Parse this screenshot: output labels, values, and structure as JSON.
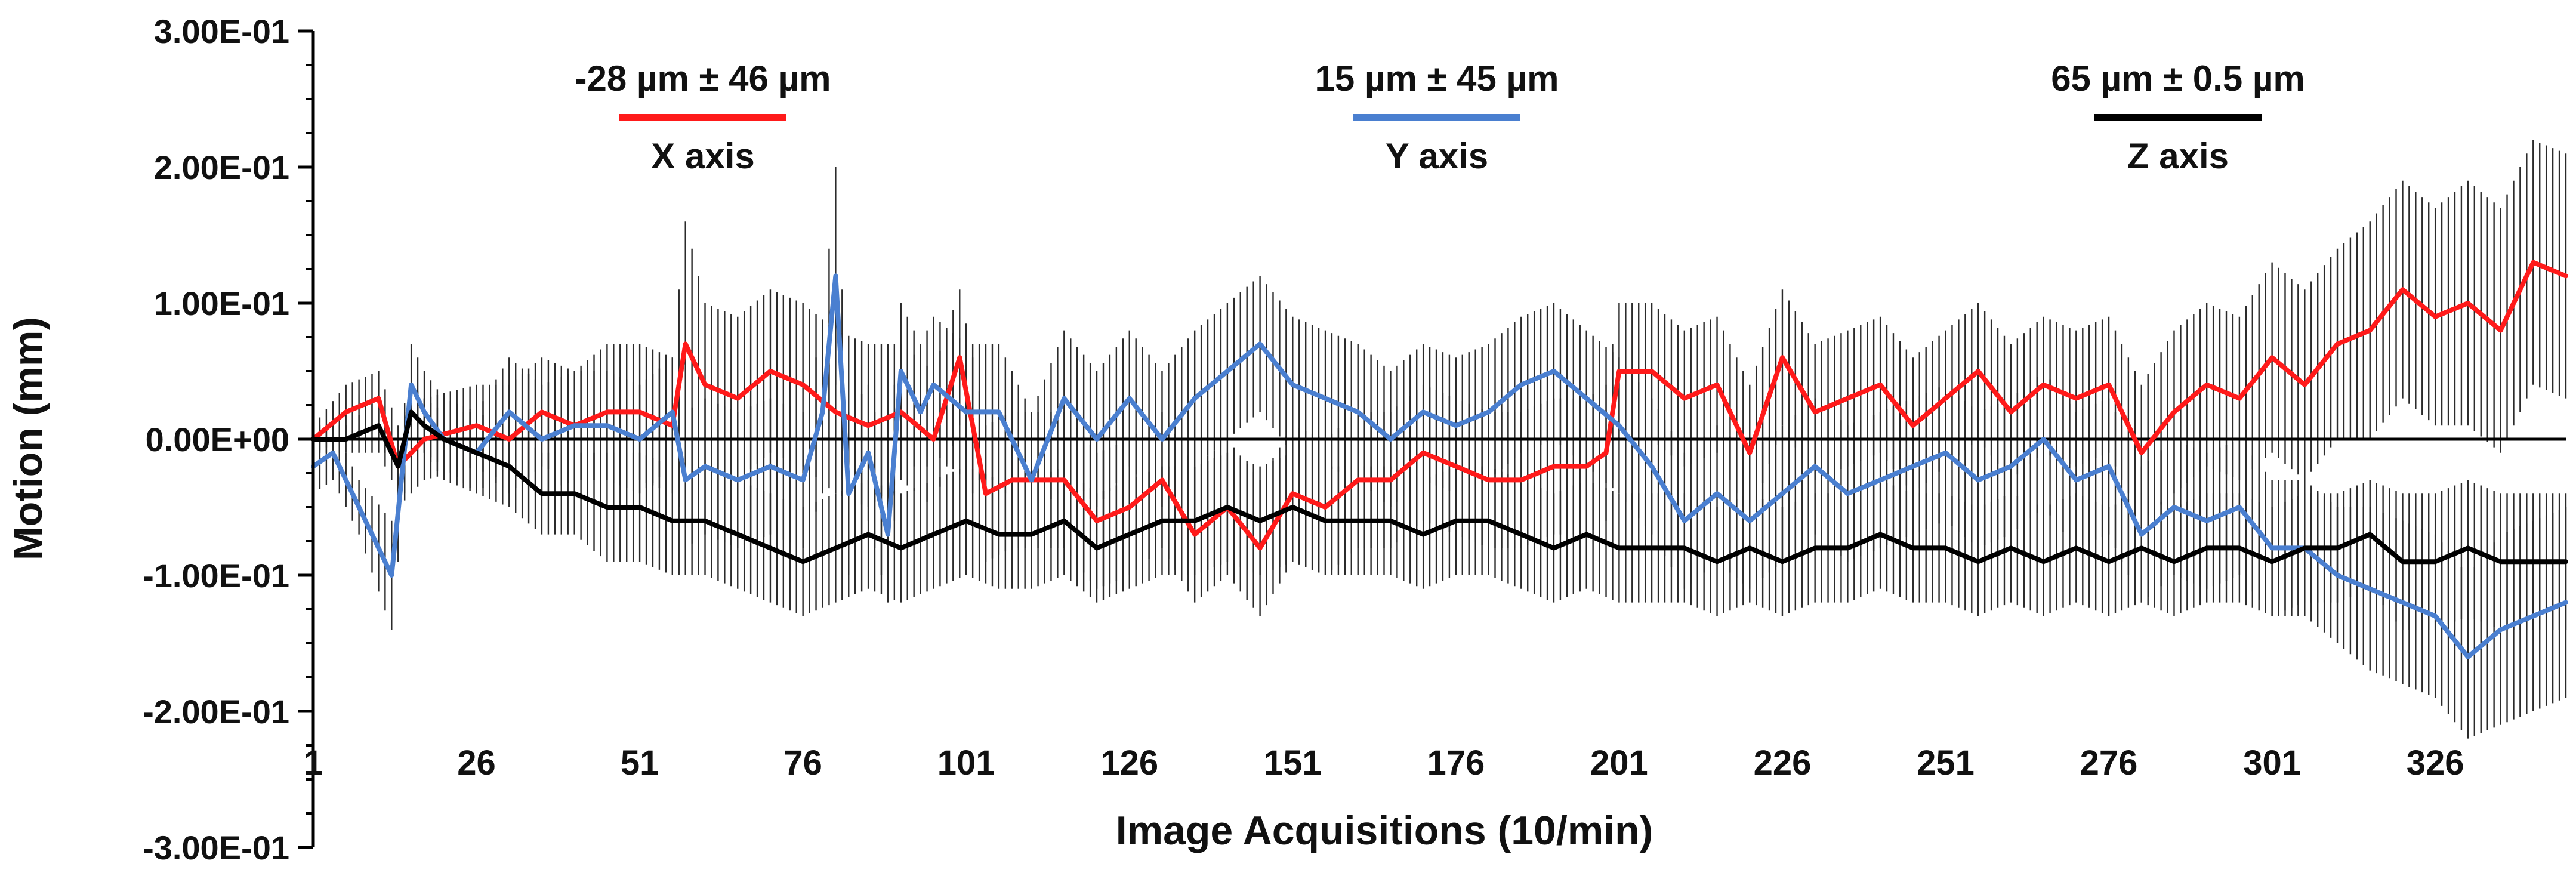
{
  "chart_data": {
    "type": "line",
    "title": "",
    "xlabel": "Image Acquisitions  (10/min)",
    "ylabel": "Motion (mm)",
    "x_range": [
      1,
      346
    ],
    "ylim": [
      -0.3,
      0.3
    ],
    "ytick_values": [
      -0.3,
      -0.2,
      -0.1,
      0.0,
      0.1,
      0.2,
      0.3
    ],
    "yticks": [
      "-3.00E-01",
      "-2.00E-01",
      "-1.00E-01",
      "0.00E+00",
      "1.00E-01",
      "2.00E-01",
      "3.00E-01"
    ],
    "xtick_values": [
      1,
      26,
      51,
      76,
      101,
      126,
      151,
      176,
      201,
      226,
      251,
      276,
      301,
      326
    ],
    "xticks": [
      "1",
      "26",
      "51",
      "76",
      "101",
      "126",
      "151",
      "176",
      "201",
      "226",
      "251",
      "276",
      "301",
      "326"
    ],
    "zero_line": true,
    "grid": false,
    "error_bars": true,
    "legend_position": "top",
    "series": [
      {
        "name": "X axis",
        "stat": "-28 µm ± 46 µm",
        "color": "#ff1a1a",
        "x": [
          1,
          6,
          11,
          14,
          18,
          26,
          31,
          36,
          41,
          46,
          51,
          56,
          58,
          61,
          66,
          71,
          76,
          81,
          86,
          91,
          96,
          100,
          104,
          108,
          116,
          121,
          126,
          131,
          136,
          141,
          146,
          151,
          156,
          161,
          166,
          171,
          176,
          181,
          186,
          191,
          196,
          199,
          201,
          206,
          211,
          216,
          221,
          226,
          231,
          236,
          241,
          246,
          251,
          256,
          261,
          266,
          271,
          276,
          281,
          286,
          291,
          296,
          301,
          306,
          311,
          316,
          321,
          326,
          331,
          336,
          341,
          346
        ],
        "values": [
          0.0,
          0.02,
          0.03,
          -0.02,
          0.0,
          0.01,
          0.0,
          0.02,
          0.01,
          0.02,
          0.02,
          0.01,
          0.07,
          0.04,
          0.03,
          0.05,
          0.04,
          0.02,
          0.01,
          0.02,
          0.0,
          0.06,
          -0.04,
          -0.03,
          -0.03,
          -0.06,
          -0.05,
          -0.03,
          -0.07,
          -0.05,
          -0.08,
          -0.04,
          -0.05,
          -0.03,
          -0.03,
          -0.01,
          -0.02,
          -0.03,
          -0.03,
          -0.02,
          -0.02,
          -0.01,
          0.05,
          0.05,
          0.03,
          0.04,
          -0.01,
          0.06,
          0.02,
          0.03,
          0.04,
          0.01,
          0.03,
          0.05,
          0.02,
          0.04,
          0.03,
          0.04,
          -0.01,
          0.02,
          0.04,
          0.03,
          0.06,
          0.04,
          0.07,
          0.08,
          0.11,
          0.09,
          0.1,
          0.08,
          0.13,
          0.12
        ],
        "error": [
          0.01,
          0.02,
          0.02,
          0.03,
          0.03,
          0.03,
          0.04,
          0.04,
          0.04,
          0.05,
          0.05,
          0.05,
          0.09,
          0.06,
          0.06,
          0.06,
          0.06,
          0.06,
          0.06,
          0.05,
          0.05,
          0.05,
          0.05,
          0.05,
          0.05,
          0.05,
          0.05,
          0.05,
          0.05,
          0.05,
          0.05,
          0.05,
          0.05,
          0.05,
          0.05,
          0.05,
          0.05,
          0.05,
          0.05,
          0.05,
          0.05,
          0.05,
          0.05,
          0.05,
          0.05,
          0.05,
          0.05,
          0.05,
          0.05,
          0.05,
          0.05,
          0.05,
          0.05,
          0.05,
          0.05,
          0.05,
          0.05,
          0.05,
          0.05,
          0.06,
          0.06,
          0.06,
          0.07,
          0.07,
          0.07,
          0.08,
          0.08,
          0.08,
          0.09,
          0.09,
          0.09,
          0.09
        ]
      },
      {
        "name": "Y axis",
        "stat": "15 µm ± 45 µm",
        "color": "#4a7fd0",
        "x": [
          1,
          4,
          8,
          13,
          16,
          18,
          21,
          26,
          31,
          36,
          41,
          46,
          51,
          56,
          58,
          61,
          66,
          71,
          76,
          79,
          81,
          83,
          86,
          89,
          91,
          94,
          96,
          101,
          106,
          111,
          116,
          121,
          126,
          131,
          136,
          141,
          146,
          151,
          156,
          161,
          166,
          171,
          176,
          181,
          186,
          191,
          196,
          201,
          206,
          211,
          216,
          221,
          226,
          231,
          236,
          241,
          246,
          251,
          256,
          261,
          266,
          271,
          276,
          281,
          286,
          291,
          296,
          301,
          306,
          311,
          316,
          321,
          326,
          331,
          336,
          341,
          346
        ],
        "values": [
          -0.02,
          -0.01,
          -0.05,
          -0.1,
          0.04,
          0.02,
          0.0,
          -0.01,
          0.02,
          0.0,
          0.01,
          0.01,
          0.0,
          0.02,
          -0.03,
          -0.02,
          -0.03,
          -0.02,
          -0.03,
          0.02,
          0.12,
          -0.04,
          -0.01,
          -0.07,
          0.05,
          0.02,
          0.04,
          0.02,
          0.02,
          -0.03,
          0.03,
          0.0,
          0.03,
          0.0,
          0.03,
          0.05,
          0.07,
          0.04,
          0.03,
          0.02,
          0.0,
          0.02,
          0.01,
          0.02,
          0.04,
          0.05,
          0.03,
          0.01,
          -0.02,
          -0.06,
          -0.04,
          -0.06,
          -0.04,
          -0.02,
          -0.04,
          -0.03,
          -0.02,
          -0.01,
          -0.03,
          -0.02,
          0.0,
          -0.03,
          -0.02,
          -0.07,
          -0.05,
          -0.06,
          -0.05,
          -0.08,
          -0.08,
          -0.1,
          -0.11,
          -0.12,
          -0.13,
          -0.16,
          -0.14,
          -0.13,
          -0.12
        ],
        "error": [
          0.02,
          0.02,
          0.02,
          0.04,
          0.03,
          0.03,
          0.03,
          0.03,
          0.04,
          0.04,
          0.04,
          0.04,
          0.04,
          0.04,
          0.05,
          0.05,
          0.05,
          0.05,
          0.05,
          0.06,
          0.08,
          0.06,
          0.05,
          0.05,
          0.05,
          0.05,
          0.05,
          0.05,
          0.05,
          0.05,
          0.05,
          0.05,
          0.05,
          0.05,
          0.05,
          0.05,
          0.05,
          0.05,
          0.05,
          0.05,
          0.05,
          0.05,
          0.05,
          0.05,
          0.05,
          0.05,
          0.05,
          0.05,
          0.05,
          0.05,
          0.05,
          0.05,
          0.05,
          0.05,
          0.05,
          0.05,
          0.05,
          0.05,
          0.05,
          0.05,
          0.05,
          0.05,
          0.05,
          0.05,
          0.05,
          0.05,
          0.05,
          0.05,
          0.05,
          0.05,
          0.06,
          0.06,
          0.06,
          0.06,
          0.07,
          0.07,
          0.07
        ]
      },
      {
        "name": "Z axis",
        "stat": "65 µm ± 0.5 µm",
        "color": "#000000",
        "x": [
          1,
          6,
          11,
          14,
          16,
          18,
          21,
          26,
          31,
          36,
          41,
          46,
          51,
          56,
          61,
          66,
          71,
          76,
          81,
          86,
          91,
          96,
          101,
          106,
          111,
          116,
          121,
          126,
          131,
          136,
          141,
          146,
          151,
          156,
          161,
          166,
          171,
          176,
          181,
          186,
          191,
          196,
          201,
          206,
          211,
          216,
          221,
          226,
          231,
          236,
          241,
          246,
          251,
          256,
          261,
          266,
          271,
          276,
          281,
          286,
          291,
          296,
          301,
          306,
          311,
          316,
          321,
          326,
          331,
          336,
          341,
          346
        ],
        "values": [
          0.0,
          0.0,
          0.01,
          -0.02,
          0.02,
          0.01,
          0.0,
          -0.01,
          -0.02,
          -0.04,
          -0.04,
          -0.05,
          -0.05,
          -0.06,
          -0.06,
          -0.07,
          -0.08,
          -0.09,
          -0.08,
          -0.07,
          -0.08,
          -0.07,
          -0.06,
          -0.07,
          -0.07,
          -0.06,
          -0.08,
          -0.07,
          -0.06,
          -0.06,
          -0.05,
          -0.06,
          -0.05,
          -0.06,
          -0.06,
          -0.06,
          -0.07,
          -0.06,
          -0.06,
          -0.07,
          -0.08,
          -0.07,
          -0.08,
          -0.08,
          -0.08,
          -0.09,
          -0.08,
          -0.09,
          -0.08,
          -0.08,
          -0.07,
          -0.08,
          -0.08,
          -0.09,
          -0.08,
          -0.09,
          -0.08,
          -0.09,
          -0.08,
          -0.09,
          -0.08,
          -0.08,
          -0.09,
          -0.08,
          -0.08,
          -0.07,
          -0.09,
          -0.09,
          -0.08,
          -0.09,
          -0.09,
          -0.09
        ],
        "error": [
          0.01,
          0.01,
          0.02,
          0.02,
          0.02,
          0.02,
          0.02,
          0.03,
          0.03,
          0.03,
          0.03,
          0.04,
          0.04,
          0.04,
          0.04,
          0.04,
          0.04,
          0.04,
          0.04,
          0.04,
          0.04,
          0.04,
          0.04,
          0.04,
          0.04,
          0.04,
          0.04,
          0.04,
          0.04,
          0.04,
          0.04,
          0.04,
          0.04,
          0.04,
          0.04,
          0.04,
          0.04,
          0.04,
          0.04,
          0.04,
          0.04,
          0.04,
          0.04,
          0.04,
          0.04,
          0.04,
          0.04,
          0.04,
          0.04,
          0.04,
          0.04,
          0.04,
          0.04,
          0.04,
          0.04,
          0.04,
          0.04,
          0.04,
          0.04,
          0.04,
          0.04,
          0.04,
          0.04,
          0.04,
          0.04,
          0.04,
          0.05,
          0.05,
          0.05,
          0.05,
          0.05,
          0.05
        ]
      }
    ]
  }
}
